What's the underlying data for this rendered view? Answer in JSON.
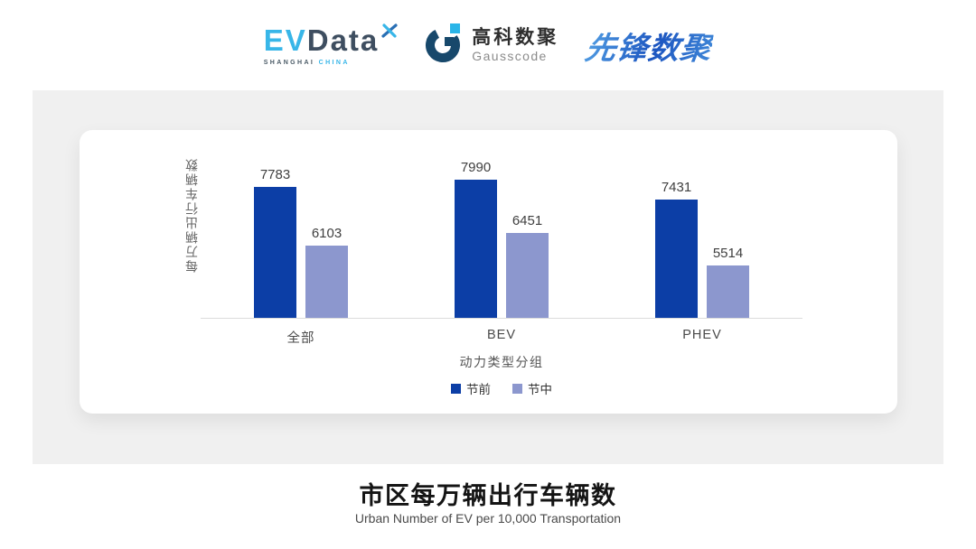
{
  "page": {
    "background": "#ffffff",
    "panel_color": "#f0f0f0",
    "card_color": "#ffffff"
  },
  "header": {
    "evdata": {
      "part1": "EV",
      "part2": "Data",
      "sub1": "SHANGHAI",
      "sub2": "CHINA",
      "color_primary": "#38b6e8",
      "color_secondary": "#3e4e60"
    },
    "gausscode": {
      "name_cn": "高科数聚",
      "name_en": "Gausscode",
      "mark_dark": "#17486b",
      "mark_accent": "#2ab5e8"
    },
    "pioneer": {
      "text": "先锋数聚",
      "color_start": "#53a0e4",
      "color_end": "#1c55c0"
    }
  },
  "chart_data": {
    "type": "bar",
    "title": "市区每万辆出行车辆数",
    "subtitle": "Urban Number of EV per 10,000 Transportation",
    "xlabel": "动力类型分组",
    "ylabel": "每万辆出行车辆数",
    "categories": [
      "全部",
      "BEV",
      "PHEV"
    ],
    "series": [
      {
        "name": "节前",
        "color": "#0c3ea6",
        "values": [
          7783,
          7990,
          7431
        ]
      },
      {
        "name": "节中",
        "color": "#8c97ce",
        "values": [
          6103,
          6451,
          5514
        ]
      }
    ],
    "data_labels": true,
    "grid": false,
    "legend_position": "bottom-center",
    "ylim": [
      4000,
      8050
    ],
    "axis_line_color": "#dcdcdc"
  }
}
